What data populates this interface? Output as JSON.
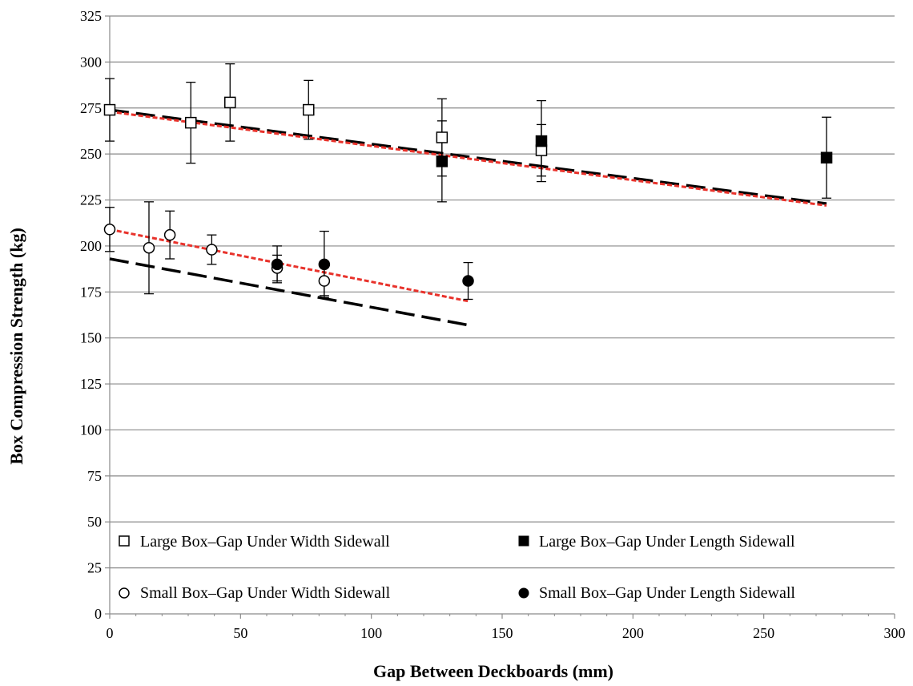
{
  "chart_data": {
    "type": "scatter",
    "xlabel": "Gap Between Deckboards (mm)",
    "ylabel": "Box Compression Strength (kg)",
    "xlim": [
      0,
      300
    ],
    "ylim": [
      0,
      325
    ],
    "x_ticks": [
      0,
      50,
      100,
      150,
      200,
      250,
      300
    ],
    "y_ticks": [
      0,
      25,
      50,
      75,
      100,
      125,
      150,
      175,
      200,
      225,
      250,
      275,
      300,
      325
    ],
    "grid": "horizontal",
    "legend_position": "bottom",
    "series": [
      {
        "name": "Large Box–Gap Under Width Sidewall",
        "marker": "open-square",
        "points": [
          {
            "x": 0,
            "y": 274,
            "err": 17
          },
          {
            "x": 31,
            "y": 267,
            "err": 22
          },
          {
            "x": 46,
            "y": 278,
            "err": 21
          },
          {
            "x": 76,
            "y": 274,
            "err": 16
          },
          {
            "x": 127,
            "y": 259,
            "err": 21
          },
          {
            "x": 165,
            "y": 252,
            "err": 14
          }
        ]
      },
      {
        "name": "Large Box–Gap Under Length Sidewall",
        "marker": "filled-square",
        "points": [
          {
            "x": 127,
            "y": 246,
            "err": 22
          },
          {
            "x": 165,
            "y": 257,
            "err": 22
          },
          {
            "x": 274,
            "y": 248,
            "err": 22
          }
        ]
      },
      {
        "name": "Small Box–Gap Under Width Sidewall",
        "marker": "open-circle",
        "points": [
          {
            "x": 0,
            "y": 209,
            "err": 12
          },
          {
            "x": 15,
            "y": 199,
            "err": 25
          },
          {
            "x": 23,
            "y": 206,
            "err": 13
          },
          {
            "x": 39,
            "y": 198,
            "err": 8
          },
          {
            "x": 64,
            "y": 188,
            "err": 7
          },
          {
            "x": 82,
            "y": 181,
            "err": 8
          }
        ]
      },
      {
        "name": "Small Box–Gap Under Length Sidewall",
        "marker": "filled-circle",
        "points": [
          {
            "x": 64,
            "y": 190,
            "err": 10
          },
          {
            "x": 82,
            "y": 190,
            "err": 18
          },
          {
            "x": 137,
            "y": 181,
            "err": 10
          }
        ]
      }
    ],
    "trendlines": [
      {
        "style": "dashed",
        "color": "#000000",
        "x": [
          0,
          274
        ],
        "y": [
          274,
          223
        ]
      },
      {
        "style": "dotted",
        "color": "#e8322b",
        "x": [
          0,
          274
        ],
        "y": [
          273,
          222
        ]
      },
      {
        "style": "dashed",
        "color": "#000000",
        "x": [
          0,
          137
        ],
        "y": [
          193,
          157
        ]
      },
      {
        "style": "dotted",
        "color": "#e8322b",
        "x": [
          0,
          137
        ],
        "y": [
          209,
          170
        ]
      }
    ]
  }
}
